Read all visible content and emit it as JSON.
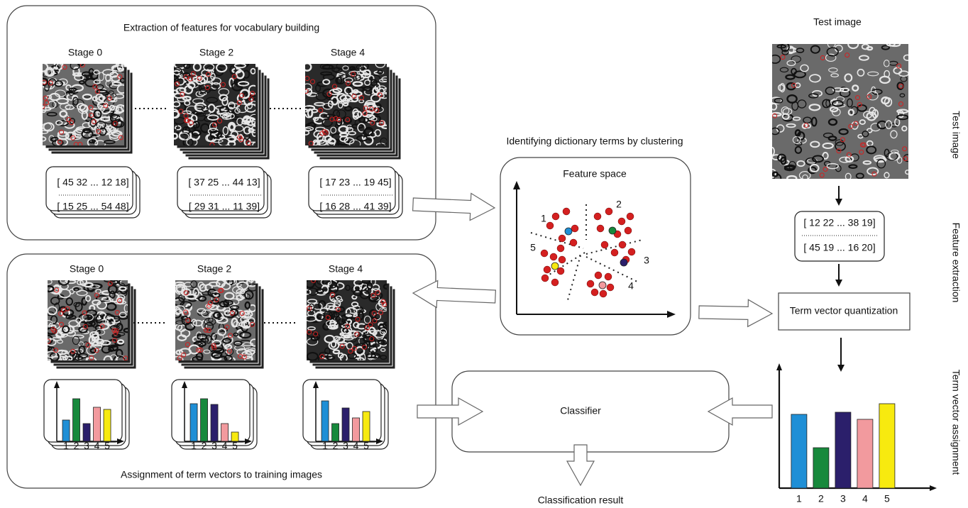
{
  "extraction": {
    "title": "Extraction of features for vocabulary building",
    "stages": [
      {
        "label": "Stage 0",
        "vectors": [
          "[ 45 32 ... 12 18]",
          "[ 15 25 ... 54 48]"
        ]
      },
      {
        "label": "Stage 2",
        "vectors": [
          "[ 37 25 ... 44 13]",
          "[ 29 31 ... 11 39]"
        ]
      },
      {
        "label": "Stage 4",
        "vectors": [
          "[ 17 23 ... 19 45]",
          "[ 16 28 ... 41 39]"
        ]
      }
    ]
  },
  "assignment": {
    "caption": "Assignment of term vectors to training images",
    "stages": [
      {
        "label": "Stage 0",
        "histogram": {
          "categories": [
            "1",
            "2",
            "3",
            "4",
            "5"
          ],
          "values": [
            30,
            60,
            25,
            48,
            45
          ]
        }
      },
      {
        "label": "Stage 2",
        "histogram": {
          "categories": [
            "1",
            "2",
            "3",
            "4",
            "5"
          ],
          "values": [
            53,
            60,
            52,
            25,
            13
          ]
        }
      },
      {
        "label": "Stage 4",
        "histogram": {
          "categories": [
            "1",
            "2",
            "3",
            "4",
            "5"
          ],
          "values": [
            57,
            25,
            47,
            33,
            42
          ]
        }
      }
    ]
  },
  "colors": [
    "#1f8fd6",
    "#17893c",
    "#2b1f6b",
    "#f29a9e",
    "#f7ea0f"
  ],
  "clustering": {
    "title": "Identifying dictionary terms by clustering",
    "panel_title": "Feature space",
    "clusters": [
      "1",
      "2",
      "3",
      "4",
      "5"
    ]
  },
  "test": {
    "title": "Test image",
    "vectors": [
      "[ 12 22 ... 38 19]",
      "[ 45 19 ... 16 20]"
    ],
    "quantization": "Term vector quantization",
    "histogram": {
      "categories": [
        "1",
        "2",
        "3",
        "4",
        "5"
      ],
      "values": [
        104,
        57,
        107,
        97,
        119
      ]
    }
  },
  "classifier": "Classifier",
  "result": "Classification result",
  "side_labels": [
    "Test image",
    "Feature extraction",
    "Term vector assignment"
  ]
}
